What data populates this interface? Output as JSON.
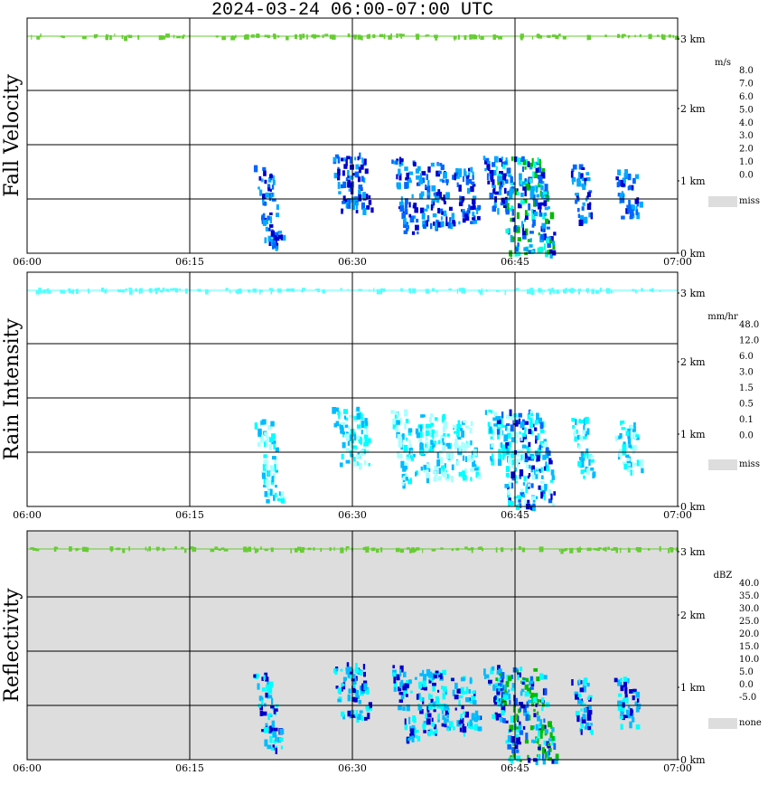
{
  "header": {
    "title": "2024-03-24   06:00-07:00 UTC"
  },
  "axes": {
    "x_ticks": [
      "06:00",
      "06:15",
      "06:30",
      "06:45",
      "07:00"
    ],
    "y_ticks": [
      "0 km",
      "1 km",
      "2 km",
      "3 km"
    ]
  },
  "panels": [
    {
      "label": "Fall Velocity",
      "background": "#ffffff",
      "legend": {
        "unit": "m/s",
        "labels": [
          "8.0",
          "7.0",
          "6.0",
          "5.0",
          "4.0",
          "3.0",
          "2.0",
          "1.0",
          "0.0"
        ],
        "colors": [
          "#ff00ff",
          "#ff0000",
          "#ff7f00",
          "#ffcc00",
          "#aaff00",
          "#00bb00",
          "#00ffdd",
          "#00aaff",
          "#0066ff",
          "#0000cc"
        ],
        "miss_label": "miss",
        "miss_color": "#dddddd"
      }
    },
    {
      "label": "Rain Intensity",
      "background": "#ffffff",
      "legend": {
        "unit": "mm/hr",
        "labels": [
          "48.0",
          "12.0",
          "6.0",
          "3.0",
          "1.5",
          "0.5",
          "0.1",
          "0.0"
        ],
        "colors": [
          "#000000",
          "#550033",
          "#aa0088",
          "#ff00ff",
          "#ff0000",
          "#ff7f00",
          "#ffff00",
          "#00cc00",
          "#88ff44",
          "#0000cc",
          "#0066ff",
          "#00bbff",
          "#00ffff",
          "#aaffff"
        ],
        "miss_label": "miss",
        "miss_color": "#dddddd"
      }
    },
    {
      "label": "Reflectivity",
      "background": "#dddddd",
      "legend": {
        "unit": "dBZ",
        "labels": [
          "40.0",
          "35.0",
          "30.0",
          "25.0",
          "20.0",
          "15.0",
          "10.0",
          "5.0",
          "0.0",
          "-5.0"
        ],
        "colors": [
          "#aa44aa",
          "#ff00ff",
          "#cc00cc",
          "#ff0000",
          "#ff7f00",
          "#ffcc00",
          "#ffff00",
          "#00bb00",
          "#00ffff",
          "#00bbff",
          "#0066ff",
          "#0000cc"
        ],
        "miss_label": "none",
        "miss_color": "#dddddd"
      }
    }
  ],
  "chart_data": {
    "type": "heatmap",
    "title": "2024-03-24   06:00-07:00 UTC",
    "x_range_minutes": [
      0,
      60
    ],
    "y_range_km": [
      0,
      3.3
    ],
    "grid": true,
    "rain_cells": [
      {
        "t_start": 20.8,
        "t_end": 22.5,
        "h_bottom": 0.1,
        "h_top": 1.25
      },
      {
        "t_start": 28.0,
        "t_end": 31.0,
        "h_bottom": 0.6,
        "h_top": 1.4
      },
      {
        "t_start": 33.5,
        "t_end": 35.0,
        "h_bottom": 0.3,
        "h_top": 1.35
      },
      {
        "t_start": 35.5,
        "t_end": 38.5,
        "h_bottom": 0.4,
        "h_top": 1.3
      },
      {
        "t_start": 39.0,
        "t_end": 41.0,
        "h_bottom": 0.4,
        "h_top": 1.2
      },
      {
        "t_start": 42.0,
        "t_end": 43.5,
        "h_bottom": 0.6,
        "h_top": 1.35
      },
      {
        "t_start": 43.0,
        "t_end": 47.5,
        "h_bottom": 0.0,
        "h_top": 1.35
      },
      {
        "t_start": 50.0,
        "t_end": 51.5,
        "h_bottom": 0.4,
        "h_top": 1.25
      },
      {
        "t_start": 54.0,
        "t_end": 56.0,
        "h_bottom": 0.5,
        "h_top": 1.2
      }
    ]
  }
}
